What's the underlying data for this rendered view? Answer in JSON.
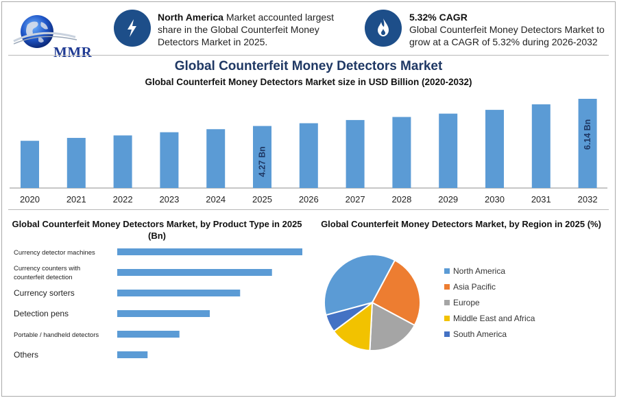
{
  "logo": {
    "text": "MMR"
  },
  "highlights": [
    {
      "icon": "lightning-bolt-icon",
      "bold": "North America",
      "text": " Market accounted largest share in the Global Counterfeit Money Detectors Market in 2025."
    },
    {
      "icon": "flame-drop-icon",
      "bold": "5.32% CAGR",
      "text": "Global Counterfeit Money Detectors Market to grow at a CAGR of 5.32% during 2026-2032"
    }
  ],
  "title": "Global Counterfeit Money Detectors Market",
  "subtitle": "Global Counterfeit Money Detectors Market size in USD Billion (2020-2032)",
  "colors": {
    "bar": "#5b9bd5",
    "dark_blue": "#1d4e89",
    "title": "#1f3864",
    "north_america": "#5b9bd5",
    "asia_pacific": "#ed7d31",
    "europe": "#a5a5a5",
    "mea": "#f2c200",
    "south_america": "#4472c4"
  },
  "chart_data": [
    {
      "type": "bar",
      "categories": [
        "2020",
        "2021",
        "2022",
        "2023",
        "2024",
        "2025",
        "2026",
        "2027",
        "2028",
        "2029",
        "2030",
        "2031",
        "2032"
      ],
      "values": [
        3.25,
        3.45,
        3.62,
        3.84,
        4.05,
        4.27,
        4.46,
        4.68,
        4.89,
        5.12,
        5.38,
        5.76,
        6.14
      ],
      "data_labels": [
        {
          "category": "2025",
          "text": "4.27 Bn"
        },
        {
          "category": "2032",
          "text": "6.14 Bn"
        }
      ],
      "ylim": [
        0,
        6.14
      ],
      "grid": false
    },
    {
      "type": "bar",
      "orientation": "horizontal",
      "title": "Global Counterfeit Money Detectors Market, by Product Type in 2025 (Bn)",
      "categories": [
        "Currency detector machines",
        "Currency counters with counterfeit detection",
        "Currency sorters",
        "Detection pens",
        "Portable / handheld detectors",
        "Others"
      ],
      "values": [
        1.22,
        1.02,
        0.81,
        0.61,
        0.41,
        0.2
      ],
      "xlim": [
        0,
        1.22
      ]
    },
    {
      "type": "pie",
      "title": "Global Counterfeit Money Detectors Market, by Region in 2025 (%)",
      "categories": [
        "North America",
        "Asia Pacific",
        "Europe",
        "Middle East and Africa",
        "South America"
      ],
      "values": [
        37,
        25,
        18,
        14,
        6
      ],
      "legend": "right"
    }
  ]
}
